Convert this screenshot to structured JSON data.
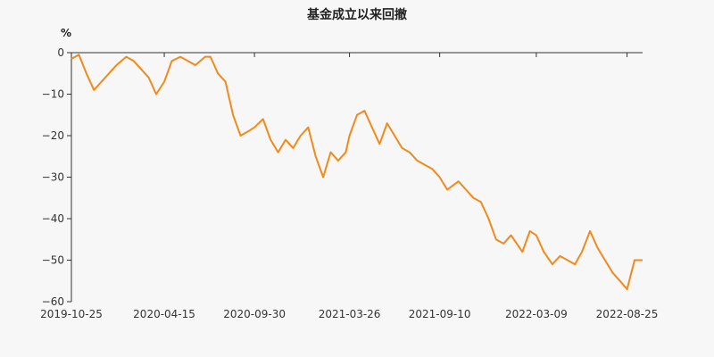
{
  "chart_data": {
    "type": "line",
    "title": "基金成立以来回撤",
    "ylabel": "%",
    "xlabel": "",
    "ylim": [
      -60,
      0
    ],
    "y_ticks": [
      0,
      -10,
      -20,
      -30,
      -40,
      -50,
      -60
    ],
    "x_ticks": [
      "2019-10-25",
      "2020-04-15",
      "2020-09-30",
      "2021-03-26",
      "2021-09-10",
      "2022-03-09",
      "2022-08-25"
    ],
    "grid": false,
    "line_color": "#f28a1b",
    "series": [
      {
        "x": [
          "2019-10-25",
          "2019-11-08",
          "2019-11-22",
          "2019-12-06",
          "2019-12-20",
          "2020-01-03",
          "2020-01-17",
          "2020-02-04",
          "2020-02-18",
          "2020-03-03",
          "2020-03-17",
          "2020-03-31",
          "2020-04-15",
          "2020-04-29",
          "2020-05-15",
          "2020-05-29",
          "2020-06-12",
          "2020-06-30",
          "2020-07-10",
          "2020-07-24",
          "2020-08-07",
          "2020-08-21",
          "2020-09-04",
          "2020-09-18",
          "2020-09-30",
          "2020-10-16",
          "2020-10-30",
          "2020-11-13",
          "2020-11-27",
          "2020-12-11",
          "2020-12-25",
          "2021-01-08",
          "2021-01-22",
          "2021-02-05",
          "2021-02-19",
          "2021-03-05",
          "2021-03-19",
          "2021-03-26",
          "2021-04-09",
          "2021-04-23",
          "2021-05-07",
          "2021-05-21",
          "2021-06-04",
          "2021-06-18",
          "2021-07-02",
          "2021-07-16",
          "2021-07-30",
          "2021-08-13",
          "2021-08-27",
          "2021-09-10",
          "2021-09-24",
          "2021-10-15",
          "2021-10-29",
          "2021-11-12",
          "2021-11-26",
          "2021-12-10",
          "2021-12-24",
          "2022-01-07",
          "2022-01-21",
          "2022-02-11",
          "2022-02-25",
          "2022-03-09",
          "2022-03-23",
          "2022-04-08",
          "2022-04-22",
          "2022-05-06",
          "2022-05-20",
          "2022-06-02",
          "2022-06-17",
          "2022-07-01",
          "2022-07-15",
          "2022-07-29",
          "2022-08-12",
          "2022-08-25",
          "2022-09-08",
          "2022-09-23"
        ],
        "values": [
          -1.5,
          -0.5,
          -5,
          -9,
          -7,
          -5,
          -3,
          -1,
          -2,
          -4,
          -6,
          -10,
          -7,
          -2,
          -1,
          -2,
          -3,
          -1,
          -1,
          -5,
          -7,
          -15,
          -20,
          -19,
          -18,
          -16,
          -21,
          -24,
          -21,
          -23,
          -20,
          -18,
          -25,
          -30,
          -24,
          -26,
          -24,
          -20,
          -15,
          -14,
          -18,
          -22,
          -17,
          -20,
          -23,
          -24,
          -26,
          -27,
          -28,
          -30,
          -33,
          -31,
          -33,
          -35,
          -36,
          -40,
          -45,
          -46,
          -44,
          -48,
          -43,
          -44,
          -48,
          -51,
          -49,
          -50,
          -51,
          -48,
          -43,
          -47,
          -50,
          -53,
          -55,
          -57,
          -50,
          -50
        ]
      }
    ]
  }
}
